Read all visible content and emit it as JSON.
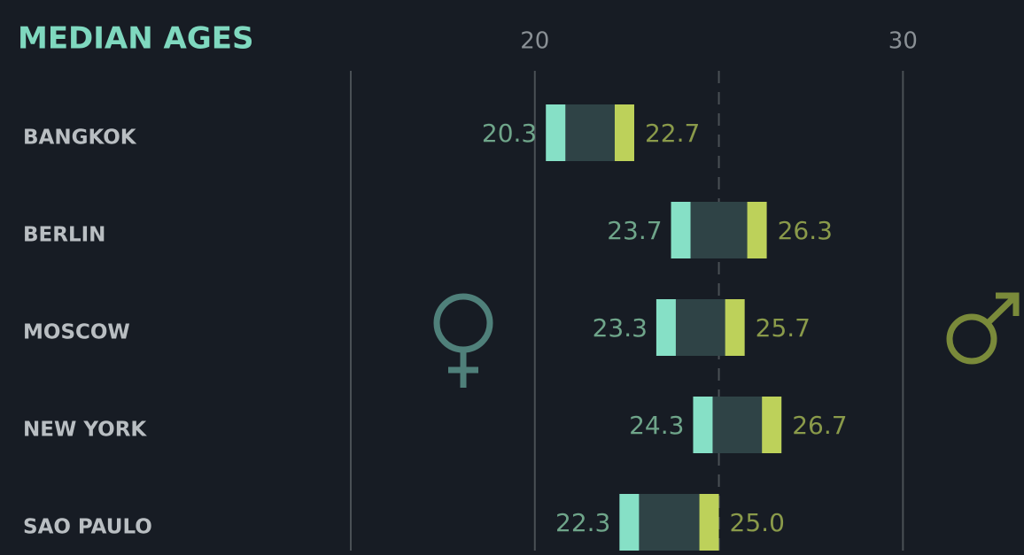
{
  "chart_data": {
    "type": "range_bar",
    "title": "MEDIAN AGES",
    "categories": [
      "BANGKOK",
      "BERLIN",
      "MOSCOW",
      "NEW YORK",
      "SAO PAULO"
    ],
    "series": [
      {
        "color": "#86e0c6",
        "label_color": "#6fa58a",
        "values": [
          20.3,
          23.7,
          23.3,
          24.3,
          22.3
        ],
        "value_labels": [
          "20.3",
          "23.7",
          "23.3",
          "24.3",
          "22.3"
        ]
      },
      {
        "color": "#bdd15a",
        "label_color": "#8a9a4a",
        "values": [
          22.7,
          26.3,
          25.7,
          26.7,
          25.0
        ],
        "value_labels": [
          "22.7",
          "26.3",
          "25.7",
          "26.7",
          "25.0"
        ]
      }
    ],
    "bar_color": "#2f4346",
    "xlim": [
      15,
      33
    ],
    "xticks": [
      20,
      30
    ],
    "reference_line": 25,
    "grid": true
  }
}
